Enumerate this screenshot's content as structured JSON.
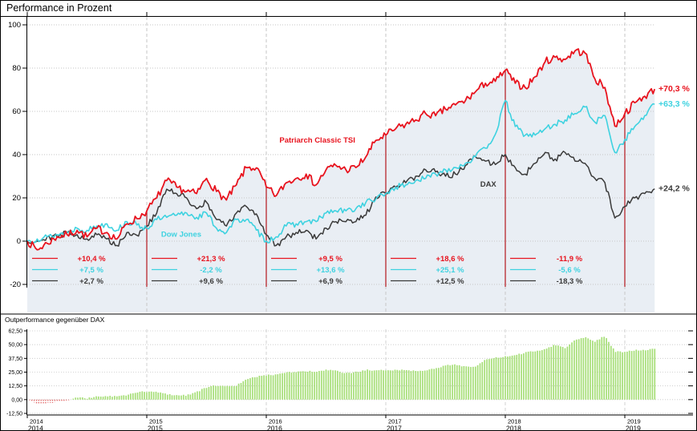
{
  "title": "Performance in Prozent",
  "colors": {
    "tsi": "#e8131e",
    "dow": "#3ed2e0",
    "dax": "#3a3a3a",
    "fill": "#e9eef4",
    "grid": "#c6c6c6",
    "divider": "#b4161c",
    "axis": "#000000"
  },
  "chart_data": [
    {
      "type": "line",
      "title": "Performance in Prozent",
      "x_start": 2014,
      "x_step_years": 0.0833333,
      "xlim": [
        2014,
        2019.25
      ],
      "ylim": [
        -20,
        100
      ],
      "x_tick_years": [
        2014,
        2015,
        2016,
        2017,
        2018,
        2019
      ],
      "x_tick_labels": [
        "2014",
        "2015",
        "2016",
        "2017",
        "2018",
        "2019"
      ],
      "y_ticks": [
        100,
        80,
        60,
        40,
        20,
        0,
        -20
      ],
      "y_tick_labels": [
        "100",
        "80",
        "60",
        "40",
        "20",
        "0",
        "-20"
      ],
      "series": [
        {
          "name": "DAX",
          "color": "#3a3a3a",
          "end_label": "+24,2 %",
          "end_value": 24.2,
          "label_pos": {
            "x": 2017.79,
            "y": 25.2
          },
          "values": [
            0,
            0,
            2,
            2,
            4,
            3,
            1,
            3,
            1,
            -2,
            4,
            2.7,
            7,
            13,
            24,
            22,
            20,
            15,
            18,
            10,
            7,
            13,
            16,
            12.6,
            3,
            -2,
            2,
            4,
            5,
            1,
            6,
            9,
            9,
            9,
            12,
            20.4,
            22,
            25,
            27,
            30,
            33,
            32,
            30,
            31,
            35,
            39,
            37,
            35.4,
            40,
            34,
            31,
            36,
            41,
            38,
            41,
            37,
            36,
            29,
            27,
            10.7,
            16,
            20,
            22,
            24.2
          ]
        },
        {
          "name": "Dow Jones",
          "color": "#3ed2e0",
          "end_label": "+63,3 %",
          "end_value": 63.3,
          "label_pos": {
            "x": 2015.12,
            "y": 2
          },
          "values": [
            0,
            1,
            2,
            3,
            4,
            6,
            5,
            7,
            8,
            5,
            9,
            7.5,
            6,
            10,
            11,
            12,
            13,
            11,
            13,
            6,
            4,
            10,
            10,
            5.1,
            0,
            2,
            7,
            8,
            9,
            9,
            13,
            14,
            14,
            15,
            18,
            19.4,
            22,
            25,
            26,
            28,
            29,
            31,
            33,
            34,
            36,
            39,
            43,
            49.4,
            65,
            53,
            49,
            49,
            52,
            54,
            56,
            59,
            62,
            55,
            58,
            41,
            47,
            53,
            58,
            63.3
          ]
        },
        {
          "name": "Patriarch Classic TSI",
          "color": "#e8131e",
          "end_label": "+70,3 %",
          "end_value": 70.3,
          "label_pos": {
            "x": 2016.11,
            "y": 45.6
          },
          "values": [
            0,
            -4,
            -1,
            2,
            3,
            5,
            2,
            6,
            4,
            1,
            8,
            10.4,
            14,
            20,
            28,
            25,
            23,
            22,
            29,
            23,
            19,
            26,
            34,
            33.9,
            25,
            21,
            27,
            29,
            31,
            26,
            33,
            35,
            33,
            34,
            39,
            46.6,
            49,
            52,
            54,
            56,
            59,
            58,
            61,
            63,
            65,
            69,
            73,
            73.9,
            79,
            73,
            71,
            76,
            83,
            85,
            84,
            88,
            87,
            75,
            71,
            53.2,
            59,
            64,
            67,
            70.3
          ]
        }
      ],
      "annual_returns": {
        "years": [
          2014,
          2015,
          2016,
          2017,
          2018
        ],
        "rows": [
          {
            "series": "Patriarch Classic TSI",
            "color": "#e8131e",
            "values": [
              "+10,4 %",
              "+21,3 %",
              "+9,5 %",
              "+18,6 %",
              "-11,9 %"
            ]
          },
          {
            "series": "Dow Jones",
            "color": "#3ed2e0",
            "values": [
              "+7,5 %",
              "-2,2 %",
              "+13,6 %",
              "+25,1 %",
              "-5,6 %"
            ]
          },
          {
            "series": "DAX",
            "color": "#3a3a3a",
            "values": [
              "+2,7 %",
              "+9,6 %",
              "+6,9 %",
              "+12,5 %",
              "-18,3 %"
            ]
          }
        ]
      }
    },
    {
      "type": "area",
      "title": "Outperformance gegenüber DAX",
      "x_start": 2014,
      "x_step_years": 0.0833333,
      "xlim": [
        2014,
        2019.25
      ],
      "ylim": [
        -12.5,
        62.5
      ],
      "y_ticks": [
        62.5,
        50,
        37.5,
        25,
        12.5,
        0,
        -12.5
      ],
      "y_tick_labels": [
        "62,50",
        "50,00",
        "37,50",
        "25,00",
        "12,50",
        "0,00",
        "-12,50"
      ],
      "color": "#a6de77",
      "negative_color": "#e06060",
      "values": [
        0,
        -4,
        -3,
        -2,
        -1,
        2,
        1,
        3,
        3,
        3,
        4,
        7,
        7,
        7,
        5,
        4,
        4,
        7,
        11,
        13,
        12,
        13,
        18,
        21,
        22,
        23,
        25,
        25,
        26,
        25,
        27,
        26,
        24,
        25,
        27,
        26,
        27,
        27,
        27,
        26,
        27,
        28,
        31,
        32,
        30,
        30,
        36,
        38,
        39,
        40,
        43,
        44,
        46,
        50,
        47,
        54,
        57,
        53,
        58,
        44,
        43,
        45,
        45,
        46
      ]
    }
  ]
}
